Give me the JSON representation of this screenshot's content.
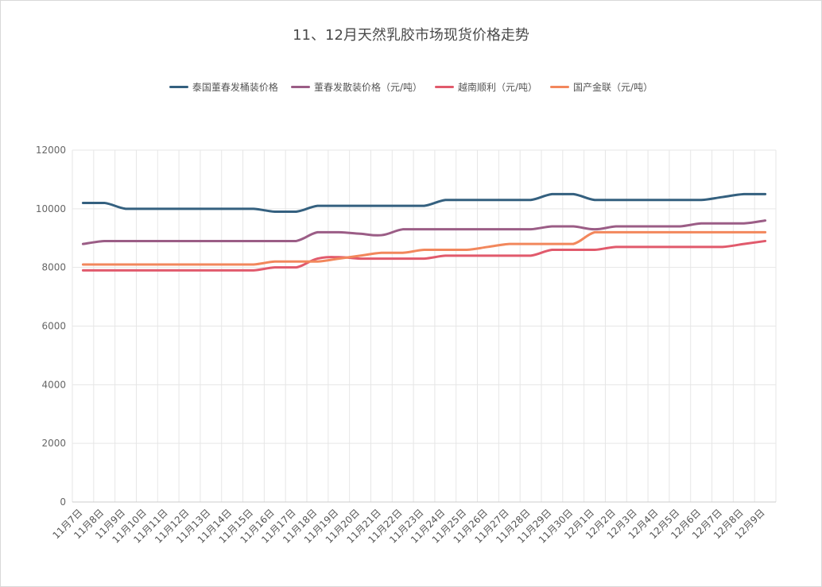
{
  "chart_data": {
    "type": "line",
    "title": "11、12月天然乳胶市场现货价格走势",
    "xlabel": "",
    "ylabel": "",
    "ylim": [
      0,
      12000
    ],
    "yticks": [
      0,
      2000,
      4000,
      6000,
      8000,
      10000,
      12000
    ],
    "grid": true,
    "legend_position": "top-center",
    "categories": [
      "11月7日",
      "11月8日",
      "11月9日",
      "11月10日",
      "11月11日",
      "11月12日",
      "11月13日",
      "11月14日",
      "11月15日",
      "11月16日",
      "11月17日",
      "11月18日",
      "11月19日",
      "11月20日",
      "11月21日",
      "11月22日",
      "11月23日",
      "11月24日",
      "11月25日",
      "11月26日",
      "11月27日",
      "11月28日",
      "11月29日",
      "11月30日",
      "12月1日",
      "12月2日",
      "12月3日",
      "12月4日",
      "12月5日",
      "12月6日",
      "12月7日",
      "12月8日",
      "12月9日"
    ],
    "series": [
      {
        "name": "泰国董春发桶装价格",
        "color": "#34607f",
        "values": [
          10200,
          10200,
          10000,
          10000,
          10000,
          10000,
          10000,
          10000,
          10000,
          9900,
          9900,
          10100,
          10100,
          10100,
          10100,
          10100,
          10100,
          10300,
          10300,
          10300,
          10300,
          10300,
          10500,
          10500,
          10300,
          10300,
          10300,
          10300,
          10300,
          10300,
          10400,
          10500,
          10500
        ]
      },
      {
        "name": "董春发散装价格（元/吨）",
        "color": "#9b5d86",
        "values": [
          8800,
          8900,
          8900,
          8900,
          8900,
          8900,
          8900,
          8900,
          8900,
          8900,
          8900,
          9200,
          9200,
          9150,
          9100,
          9300,
          9300,
          9300,
          9300,
          9300,
          9300,
          9300,
          9400,
          9400,
          9300,
          9400,
          9400,
          9400,
          9400,
          9500,
          9500,
          9500,
          9600
        ]
      },
      {
        "name": "越南顺利（元/吨）",
        "color": "#e15a6c",
        "values": [
          7900,
          7900,
          7900,
          7900,
          7900,
          7900,
          7900,
          7900,
          7900,
          8000,
          8000,
          8300,
          8350,
          8300,
          8300,
          8300,
          8300,
          8400,
          8400,
          8400,
          8400,
          8400,
          8600,
          8600,
          8600,
          8700,
          8700,
          8700,
          8700,
          8700,
          8700,
          8800,
          8900
        ]
      },
      {
        "name": "国产金联（元/吨）",
        "color": "#f2875c",
        "values": [
          8100,
          8100,
          8100,
          8100,
          8100,
          8100,
          8100,
          8100,
          8100,
          8200,
          8200,
          8200,
          8300,
          8400,
          8500,
          8500,
          8600,
          8600,
          8600,
          8700,
          8800,
          8800,
          8800,
          8800,
          9200,
          9200,
          9200,
          9200,
          9200,
          9200,
          9200,
          9200,
          9200
        ]
      }
    ]
  }
}
